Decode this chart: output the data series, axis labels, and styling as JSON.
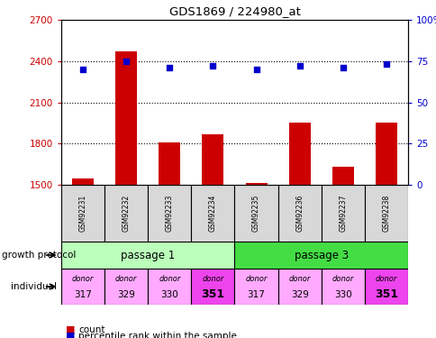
{
  "title": "GDS1869 / 224980_at",
  "samples": [
    "GSM92231",
    "GSM92232",
    "GSM92233",
    "GSM92234",
    "GSM92235",
    "GSM92236",
    "GSM92237",
    "GSM92238"
  ],
  "count_values": [
    1545,
    2470,
    1805,
    1870,
    1510,
    1950,
    1630,
    1955
  ],
  "percentile_values": [
    70,
    75,
    71,
    72,
    70,
    72,
    71,
    73
  ],
  "ylim_left": [
    1500,
    2700
  ],
  "ylim_right": [
    0,
    100
  ],
  "yticks_left": [
    1500,
    1800,
    2100,
    2400,
    2700
  ],
  "yticks_right": [
    0,
    25,
    50,
    75,
    100
  ],
  "ytick_labels_left": [
    "1500",
    "1800",
    "2100",
    "2400",
    "2700"
  ],
  "ytick_labels_right": [
    "0",
    "25",
    "50",
    "75",
    "100%"
  ],
  "grid_values": [
    1800,
    2100,
    2400
  ],
  "bar_color": "#cc0000",
  "dot_color": "#0000cc",
  "passage1_label": "passage 1",
  "passage3_label": "passage 3",
  "passage1_color": "#bbffbb",
  "passage3_color": "#44dd44",
  "individual_labels_top": [
    "donor",
    "donor",
    "donor",
    "donor",
    "donor",
    "donor",
    "donor",
    "donor"
  ],
  "individual_labels_bottom": [
    "317",
    "329",
    "330",
    "351",
    "317",
    "329",
    "330",
    "351"
  ],
  "individual_bold": [
    false,
    false,
    false,
    true,
    false,
    false,
    false,
    true
  ],
  "individual_colors": [
    "#ffaaff",
    "#ffaaff",
    "#ffaaff",
    "#ee44ee",
    "#ffaaff",
    "#ffaaff",
    "#ffaaff",
    "#ee44ee"
  ],
  "sample_bg_color": "#d8d8d8",
  "growth_protocol_label": "growth protocol",
  "individual_label": "individual",
  "legend_count": "count",
  "legend_percentile": "percentile rank within the sample",
  "bar_color_legend": "#cc0000",
  "dot_color_legend": "#0000cc"
}
